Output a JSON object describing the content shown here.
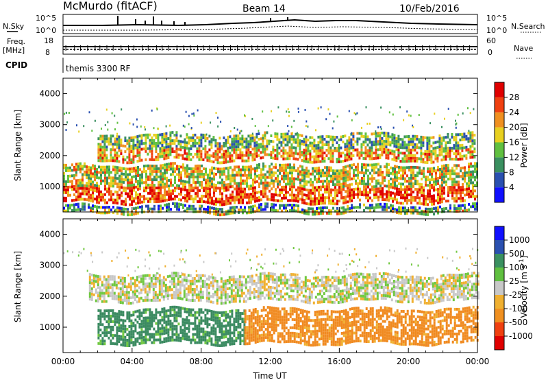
{
  "header": {
    "title": "McMurdo (fitACF)",
    "beam": "Beam 14",
    "date": "10/Feb/2016"
  },
  "strip_panels": {
    "noise": {
      "left_label": "N.Sky",
      "right_label": "N.Search",
      "left_ticks": [
        "10^5",
        "10^0"
      ],
      "right_ticks": [
        "10^5",
        "10^0"
      ]
    },
    "freq": {
      "left_label_1": "Freq.",
      "left_label_2": "[MHz]",
      "right_label": "Nave",
      "left_ticks": [
        "18",
        "8"
      ],
      "right_ticks": [
        "60",
        "0"
      ]
    },
    "cpid": {
      "label": "CPID",
      "program": "themis 3300 RF"
    }
  },
  "chart_data": [
    {
      "type": "heatmap",
      "title": "",
      "xlabel": "",
      "ylabel": "Slant Range [km]",
      "xlim": [
        0,
        24
      ],
      "ylim": [
        180,
        4500
      ],
      "yticks": [
        1000,
        2000,
        3000,
        4000
      ],
      "colorbar": {
        "label": "Power [dB]",
        "ticks": [
          4,
          8,
          12,
          16,
          20,
          24,
          28
        ],
        "range": [
          0,
          30
        ],
        "colors": [
          "#1010ff",
          "#2a50b0",
          "#3a9060",
          "#60c040",
          "#e8d020",
          "#f09020",
          "#f04010",
          "#e00000"
        ]
      },
      "bands": [
        {
          "range_km": [
            1900,
            2700
          ],
          "t": [
            2.0,
            23.8
          ],
          "value_db": 14
        },
        {
          "range_km": [
            500,
            1700
          ],
          "t": [
            0.0,
            24.0
          ],
          "value_db": 18
        },
        {
          "range_km": [
            200,
            400
          ],
          "t": [
            0.0,
            24.0
          ],
          "value_db": 10
        }
      ]
    },
    {
      "type": "heatmap",
      "title": "",
      "xlabel": "Time UT",
      "ylabel": "Slant Range [km]",
      "xlim": [
        0,
        24
      ],
      "ylim": [
        180,
        4500
      ],
      "yticks": [
        1000,
        2000,
        3000,
        4000
      ],
      "xticks": [
        "00:00",
        "04:00",
        "08:00",
        "12:00",
        "16:00",
        "20:00",
        "00:00"
      ],
      "colorbar": {
        "label": "Velocity [m s^-1]",
        "ticks": [
          "1000",
          "500",
          "100",
          "25",
          "-25",
          "-100",
          "-500",
          "-1000"
        ],
        "range": [
          -1200,
          1200
        ],
        "colors": [
          "#e00000",
          "#f04010",
          "#f09020",
          "#f0b030",
          "#c8c8c8",
          "#60c040",
          "#3a9060",
          "#2a50b0",
          "#1010ff"
        ]
      },
      "bands": [
        {
          "range_km": [
            1900,
            2700
          ],
          "t": [
            1.5,
            24.0
          ],
          "velocity": 0
        },
        {
          "range_km": [
            500,
            1600
          ],
          "t": [
            2.0,
            10.5
          ],
          "velocity": 300
        },
        {
          "range_km": [
            500,
            1600
          ],
          "t": [
            10.5,
            24.0
          ],
          "velocity": -300
        }
      ]
    }
  ]
}
